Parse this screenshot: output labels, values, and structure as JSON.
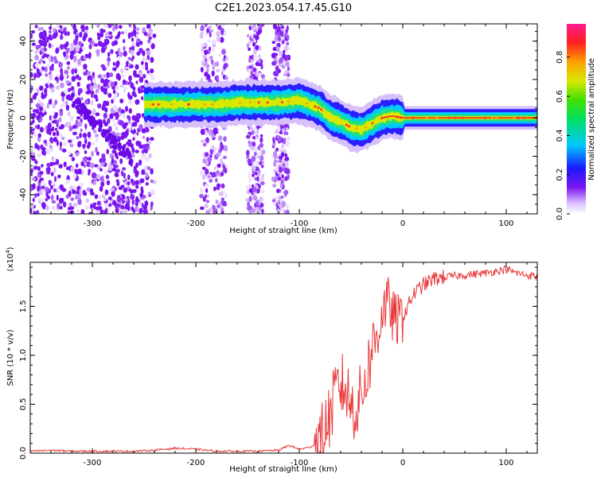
{
  "title": "C2E1.2023.054.17.45.G10",
  "colors": {
    "snr_line": "#e8383a",
    "scatter": "#7a14f0",
    "background": "#ffffff",
    "axes": "#000000"
  },
  "chart_data": [
    {
      "type": "heatmap",
      "xlabel": "Height of straight line (km)",
      "ylabel": "Frequency (Hz)",
      "xlim": [
        -360,
        130
      ],
      "ylim": [
        -50,
        49
      ],
      "xticks": [
        "-300",
        "-200",
        "-100",
        "0",
        "100"
      ],
      "yticks": [
        "-40",
        "-20",
        "0",
        "20",
        "40"
      ],
      "colorbar": {
        "label": "Normalized spectral amplitude",
        "range": [
          0,
          0.97
        ],
        "ticks": [
          "0.0",
          "0.2",
          "0.4",
          "0.6",
          "0.8"
        ],
        "colormap": "rainbow"
      },
      "signal_track": {
        "x": [
          -250,
          -220,
          -200,
          -180,
          -160,
          -140,
          -120,
          -100,
          -80,
          -70,
          -60,
          -50,
          -40,
          -30,
          -20,
          -10,
          0,
          20,
          50,
          100,
          130
        ],
        "freq": [
          7,
          7,
          7,
          7,
          8,
          8,
          8,
          9,
          5,
          0,
          -2,
          -5,
          -6,
          -3,
          0,
          1,
          0,
          0,
          0,
          0,
          0
        ]
      },
      "noise_bands": [
        {
          "x": [
            -360,
            -240
          ],
          "density": "high"
        },
        {
          "x": [
            -195,
            -170
          ],
          "density": "medium"
        },
        {
          "x": [
            -150,
            -135
          ],
          "density": "medium"
        },
        {
          "x": [
            -125,
            -110
          ],
          "density": "medium"
        }
      ]
    },
    {
      "type": "line",
      "xlabel": "Height of straight line (km)",
      "ylabel": "SNR (10 * v/v)",
      "multiplier": "(x10^4)",
      "xlim": [
        -360,
        130
      ],
      "ylim": [
        0,
        1.95
      ],
      "xticks": [
        "-300",
        "-200",
        "-100",
        "0",
        "100"
      ],
      "yticks": [
        "0.0",
        "0.5",
        "1.0",
        "1.5"
      ],
      "series": [
        {
          "x": [
            -360,
            -340,
            -320,
            -300,
            -280,
            -260,
            -240,
            -220,
            -200,
            -180,
            -160,
            -140,
            -120,
            -110,
            -100,
            -90,
            -80,
            -75,
            -70,
            -65,
            -60,
            -55,
            -50,
            -45,
            -40,
            -35,
            -30,
            -25,
            -20,
            -15,
            -10,
            -5,
            0,
            5,
            10,
            20,
            30,
            40,
            60,
            80,
            100,
            110,
            120,
            130
          ],
          "y": [
            0.02,
            0.03,
            0.02,
            0.02,
            0.02,
            0.02,
            0.03,
            0.05,
            0.04,
            0.02,
            0.02,
            0.02,
            0.03,
            0.08,
            0.04,
            0.06,
            0.12,
            0.25,
            0.4,
            0.6,
            0.7,
            0.65,
            0.5,
            0.45,
            0.6,
            0.8,
            1.05,
            1.2,
            1.45,
            1.55,
            1.4,
            1.35,
            1.4,
            1.5,
            1.62,
            1.72,
            1.78,
            1.8,
            1.82,
            1.84,
            1.88,
            1.84,
            1.82,
            1.8
          ]
        }
      ]
    }
  ]
}
